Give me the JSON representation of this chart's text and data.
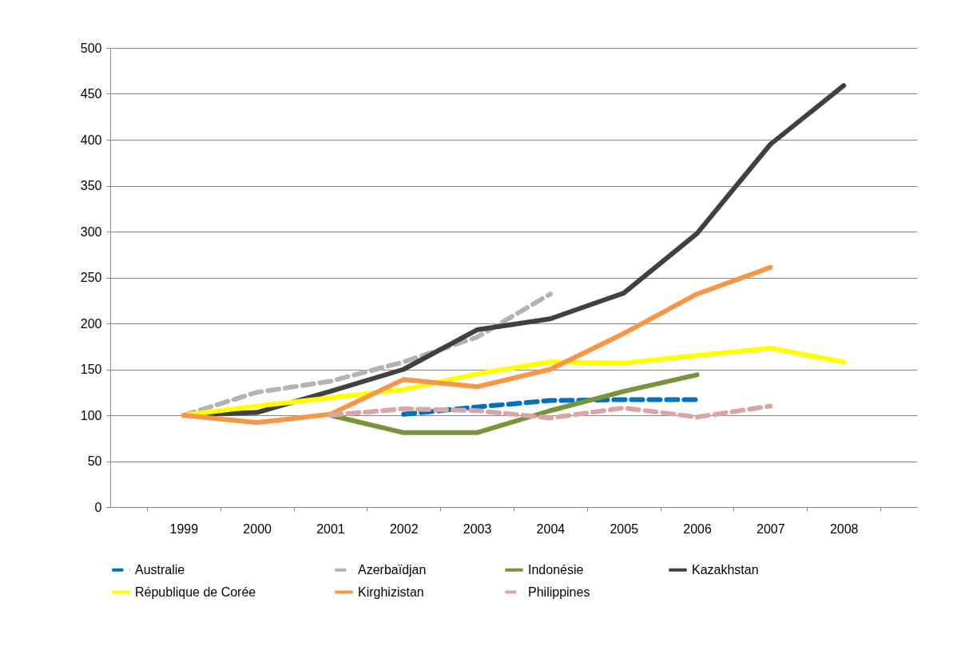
{
  "chart_data": {
    "type": "line",
    "categories": [
      "1999",
      "2000",
      "2001",
      "2002",
      "2003",
      "2004",
      "2005",
      "2006",
      "2007",
      "2008"
    ],
    "ylim": [
      0,
      500
    ],
    "yticks": [
      0,
      50,
      100,
      150,
      200,
      250,
      300,
      350,
      400,
      450,
      500
    ],
    "grid": "y",
    "legend": "bottom",
    "series": [
      {
        "name": "Australie",
        "color": "#0070c0",
        "line_style": "dashed",
        "values": [
          null,
          null,
          null,
          101,
          109,
          116,
          117,
          117,
          null,
          null
        ]
      },
      {
        "name": "Azerbaïdjan",
        "color": "#b3b3b3",
        "line_style": "dashed",
        "values": [
          100,
          125,
          137,
          158,
          185,
          232,
          null,
          null,
          null,
          null
        ]
      },
      {
        "name": "Indonésie",
        "color": "#77933c",
        "line_style": "solid",
        "values": [
          null,
          null,
          100,
          81,
          81,
          105,
          126,
          144,
          null,
          null
        ]
      },
      {
        "name": "Kazakhstan",
        "color": "#404040",
        "line_style": "solid",
        "values": [
          100,
          103,
          126,
          150,
          193,
          205,
          233,
          298,
          395,
          459
        ]
      },
      {
        "name": "République de Corée",
        "color": "#ffff00",
        "line_style": "solid",
        "values": [
          100,
          110,
          119,
          128,
          145,
          158,
          157,
          165,
          173,
          158
        ]
      },
      {
        "name": "Kirghizistan",
        "color": "#f79646",
        "line_style": "solid",
        "values": [
          100,
          92,
          101,
          139,
          131,
          150,
          189,
          232,
          261,
          null
        ]
      },
      {
        "name": "Philippines",
        "color": "#d9a5a5",
        "line_style": "dashed",
        "values": [
          null,
          null,
          100,
          107,
          105,
          97,
          108,
          98,
          110,
          null
        ]
      }
    ]
  }
}
